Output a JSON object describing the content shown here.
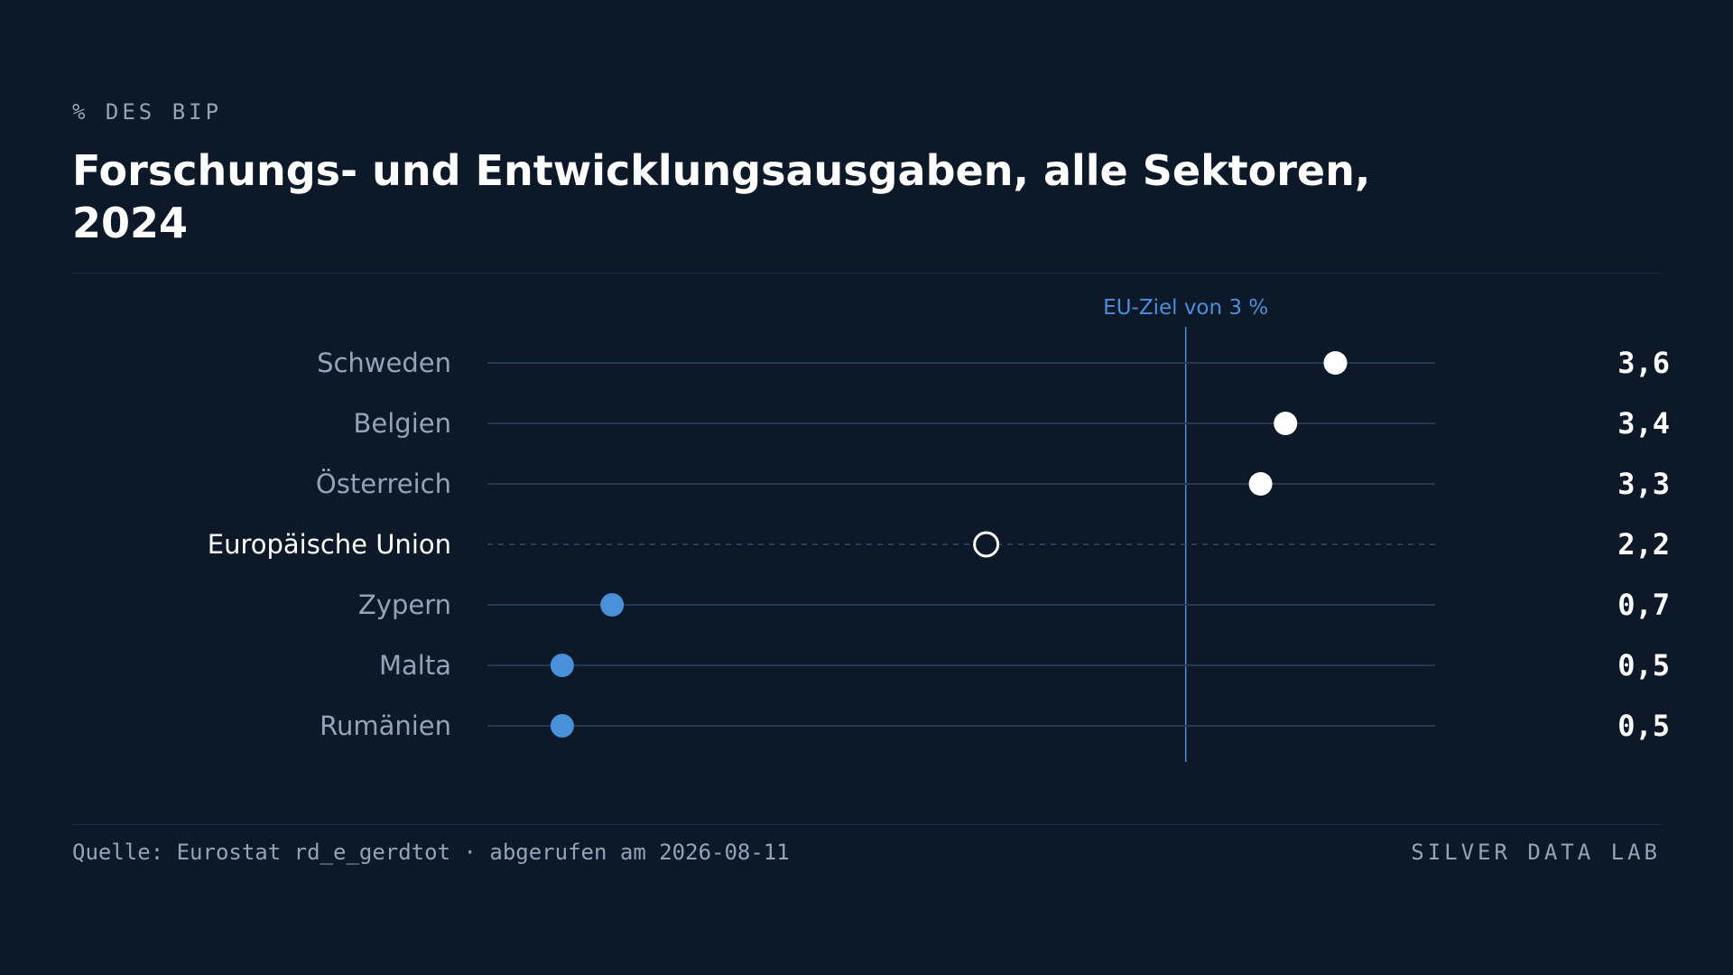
{
  "header": {
    "eyebrow": "% DES BIP",
    "title": "Forschungs- und Entwicklungsausgaben, alle Sektoren, 2024"
  },
  "footer": {
    "source": "Quelle: Eurostat rd_e_gerdtot · abgerufen am 2026-08-11",
    "brand": "SILVER DATA LAB"
  },
  "colors": {
    "background": "#0d1929",
    "highlight": "#ffffff",
    "low": "#4a8fd9",
    "reference": "#4a8fd9",
    "label_muted": "#93a4b8"
  },
  "chart_data": {
    "type": "scatter",
    "subtype": "dot-plot",
    "unit": "% des BIP",
    "xlim": [
      0.2,
      4.0
    ],
    "grid": false,
    "reference_line": {
      "value": 3.0,
      "label": "EU-Ziel von 3 %"
    },
    "categories": [
      "Schweden",
      "Belgien",
      "Österreich",
      "Europäische Union",
      "Zypern",
      "Malta",
      "Rumänien"
    ],
    "values": [
      3.6,
      3.4,
      3.3,
      2.2,
      0.7,
      0.5,
      0.5
    ],
    "value_labels": [
      "3,6",
      "3,4",
      "3,3",
      "2,2",
      "0,7",
      "0,5",
      "0,5"
    ],
    "groups": [
      "top",
      "top",
      "top",
      "aggregate",
      "bottom",
      "bottom",
      "bottom"
    ]
  }
}
